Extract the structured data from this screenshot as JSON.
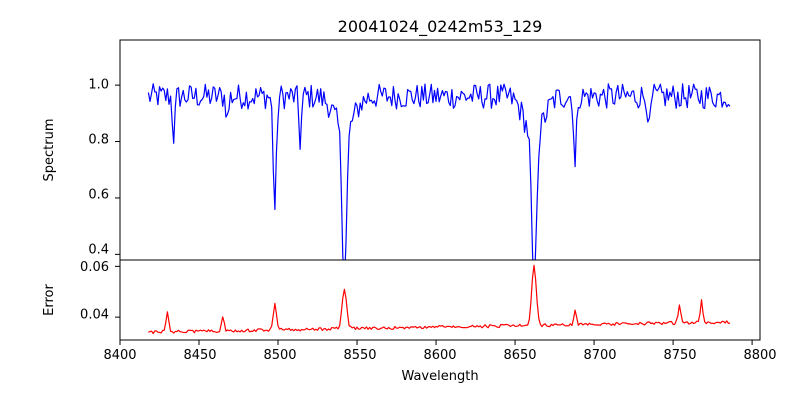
{
  "chart_data": {
    "type": "line",
    "title": "20041024_0242m53_129",
    "xlabel": "Wavelength",
    "xlim": [
      8400,
      8805
    ],
    "x_ticks": [
      "8400",
      "8450",
      "8500",
      "8550",
      "8600",
      "8650",
      "8700",
      "8750",
      "8800"
    ],
    "x_range_data": [
      8418,
      8786
    ],
    "x_step": 1,
    "panels": [
      {
        "id": "spectrum",
        "ylabel": "Spectrum",
        "ylim": [
          0.38,
          1.16
        ],
        "y_ticks": [
          "0.4",
          "0.6",
          "0.8",
          "1.0"
        ],
        "series": [
          {
            "color": "#0000ff",
            "continuum": 0.96,
            "noise": 0.045,
            "lines": [
              {
                "center": 8498,
                "depth": 0.4,
                "width": 1.0
              },
              {
                "center": 8542,
                "depth": 0.52,
                "width": 1.4
              },
              {
                "center": 8662,
                "depth": 0.57,
                "width": 1.4
              },
              {
                "center": 8514,
                "depth": 0.16,
                "width": 0.8
              },
              {
                "center": 8688,
                "depth": 0.26,
                "width": 0.8
              },
              {
                "center": 8434,
                "depth": 0.14,
                "width": 0.8
              },
              {
                "center": 8468,
                "depth": 0.08,
                "width": 0.8
              },
              {
                "center": 8735,
                "depth": 0.12,
                "width": 0.8
              }
            ],
            "wings": [
              {
                "center": 8542,
                "depth": 0.12,
                "width": 6
              },
              {
                "center": 8662,
                "depth": 0.14,
                "width": 6
              }
            ]
          }
        ]
      },
      {
        "id": "error",
        "ylabel": "Error",
        "ylim": [
          0.031,
          0.0625
        ],
        "y_ticks": [
          "0.04",
          "0.06"
        ],
        "series": [
          {
            "color": "#ff0000",
            "base_start": 0.0335,
            "base_end": 0.0375,
            "noise": 0.0012,
            "peaks": [
              {
                "center": 8430,
                "height": 0.008,
                "width": 0.8
              },
              {
                "center": 8465,
                "height": 0.006,
                "width": 0.8
              },
              {
                "center": 8498,
                "height": 0.01,
                "width": 1.0
              },
              {
                "center": 8542,
                "height": 0.016,
                "width": 1.4
              },
              {
                "center": 8662,
                "height": 0.024,
                "width": 1.4
              },
              {
                "center": 8688,
                "height": 0.006,
                "width": 0.8
              },
              {
                "center": 8754,
                "height": 0.007,
                "width": 0.8
              },
              {
                "center": 8768,
                "height": 0.009,
                "width": 0.8
              }
            ]
          }
        ]
      }
    ]
  }
}
